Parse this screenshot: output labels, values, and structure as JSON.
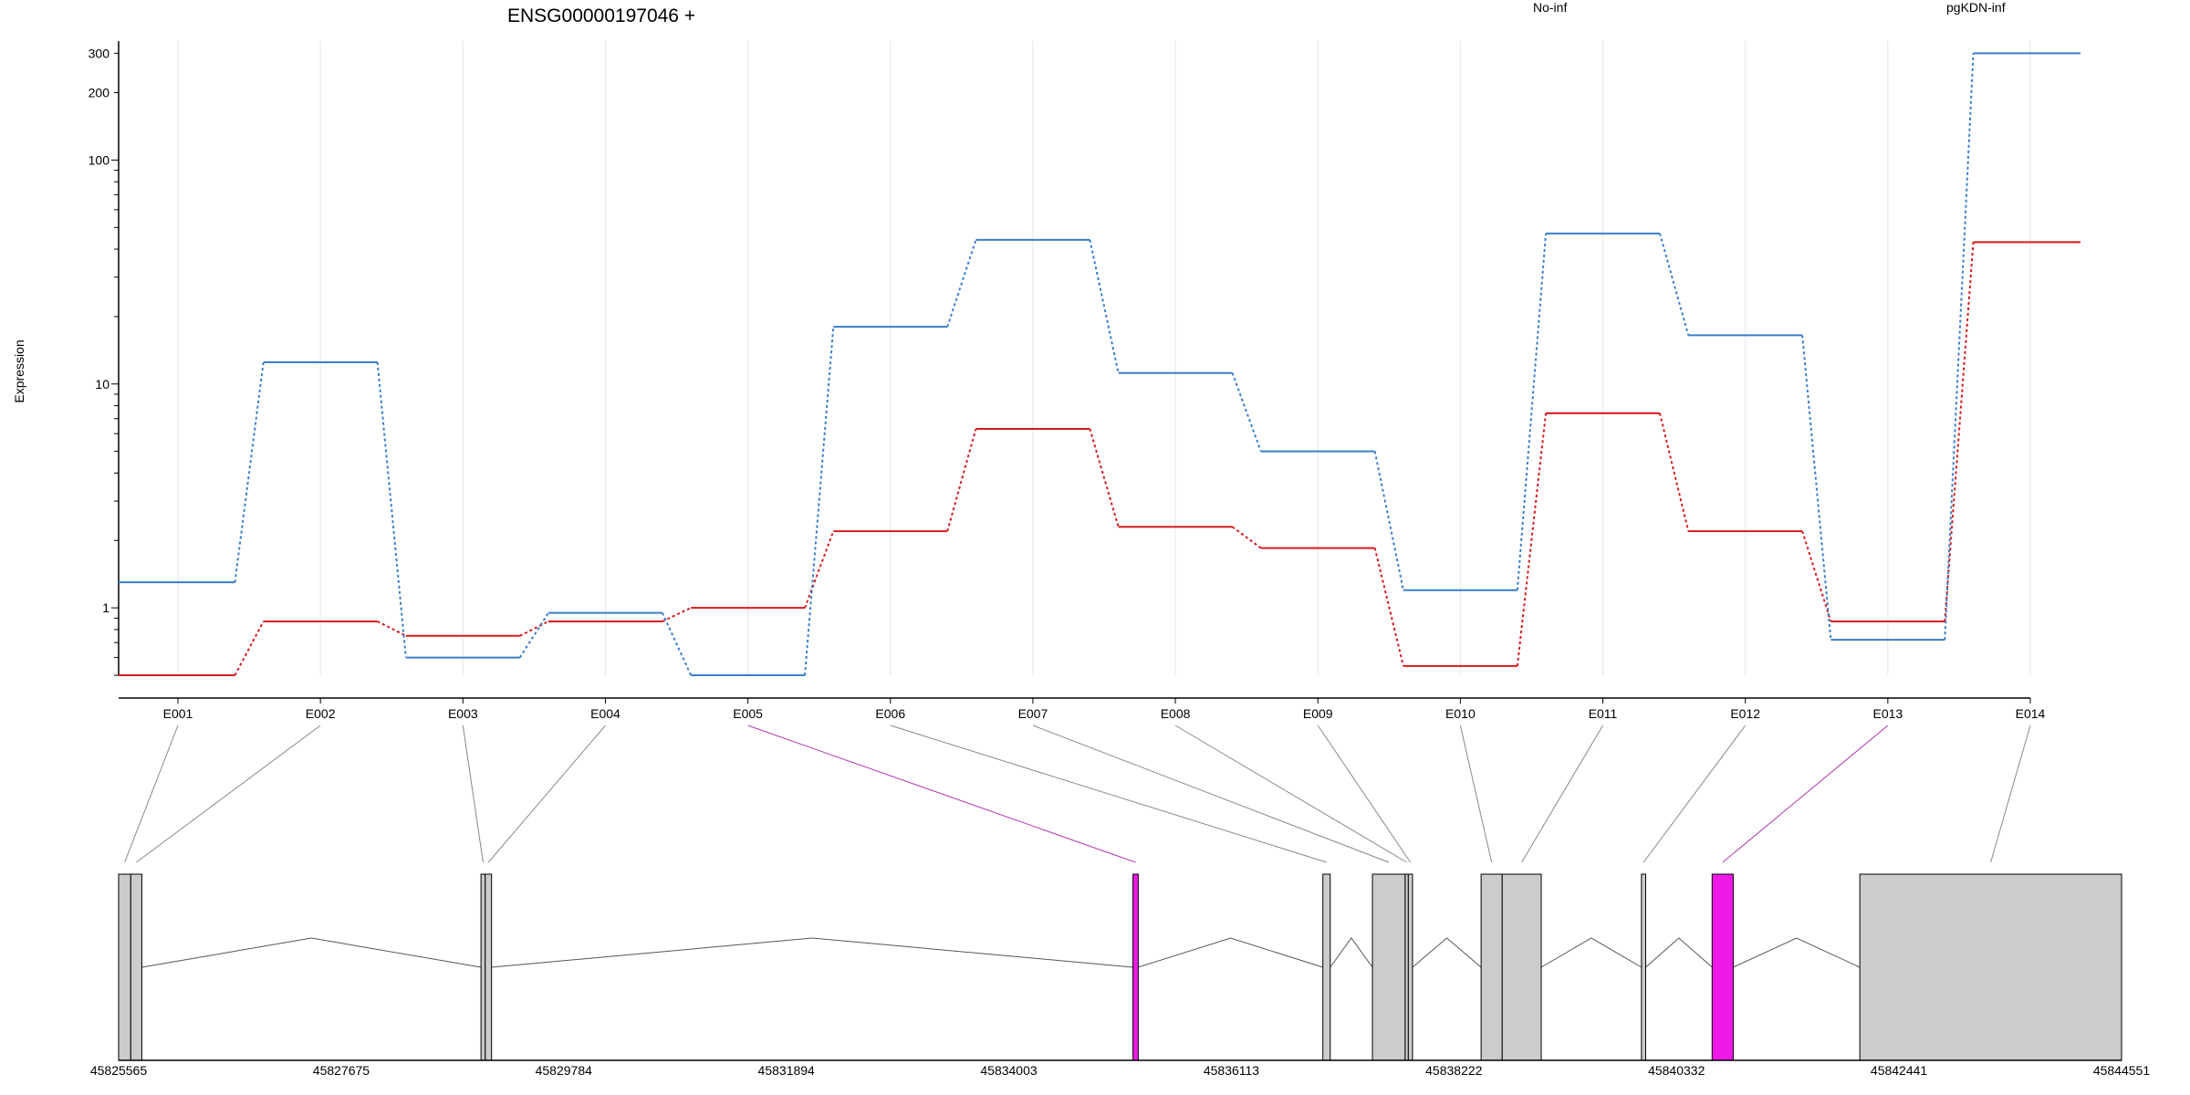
{
  "chart_data": {
    "type": "line",
    "title": "ENSG00000197046 +",
    "ylabel": "Expression",
    "yscale": "log",
    "ylim": [
      0.5,
      340
    ],
    "yticks": [
      {
        "value": 1,
        "label": "1"
      },
      {
        "value": 10,
        "label": "10"
      },
      {
        "value": 100,
        "label": "100"
      },
      {
        "value": 200,
        "label": "200"
      },
      {
        "value": 300,
        "label": "300"
      }
    ],
    "categories": [
      "E001",
      "E002",
      "E003",
      "E004",
      "E005",
      "E006",
      "E007",
      "E008",
      "E009",
      "E010",
      "E011",
      "E012",
      "E013",
      "E014"
    ],
    "series": [
      {
        "name": "No-inf",
        "color": "#d7191c",
        "values": [
          0.5,
          0.87,
          0.75,
          0.87,
          1.0,
          2.2,
          6.3,
          2.3,
          1.85,
          0.55,
          7.4,
          2.2,
          0.87,
          43
        ]
      },
      {
        "name": "pgKDN-inf",
        "color": "#3a7dc9",
        "values": [
          1.3,
          12.5,
          0.6,
          0.95,
          0.5,
          18,
          44,
          11.2,
          5.0,
          1.2,
          47,
          16.5,
          0.72,
          300
        ]
      }
    ],
    "grid": true,
    "legend_position": "top",
    "genomic_axis": {
      "start": 45825565,
      "end": 45844551,
      "ticks": [
        "45825565",
        "45827675",
        "45829784",
        "45831894",
        "45834003",
        "45836113",
        "45838222",
        "45840332",
        "45842441",
        "45844551"
      ]
    },
    "exons": [
      {
        "id": "E001",
        "start": 45825565,
        "end": 45825680,
        "highlight": false
      },
      {
        "id": "E002",
        "start": 45825680,
        "end": 45825785,
        "highlight": false
      },
      {
        "id": "E003",
        "start": 45829000,
        "end": 45829040,
        "highlight": false
      },
      {
        "id": "E004",
        "start": 45829040,
        "end": 45829100,
        "highlight": false
      },
      {
        "id": "E005",
        "start": 45835180,
        "end": 45835230,
        "highlight": true
      },
      {
        "id": "E006",
        "start": 45836980,
        "end": 45837050,
        "highlight": false
      },
      {
        "id": "E007",
        "start": 45837450,
        "end": 45837760,
        "highlight": false
      },
      {
        "id": "E008",
        "start": 45837760,
        "end": 45837790,
        "highlight": false
      },
      {
        "id": "E009",
        "start": 45837790,
        "end": 45837830,
        "highlight": false
      },
      {
        "id": "E010",
        "start": 45838480,
        "end": 45838680,
        "highlight": false
      },
      {
        "id": "E011",
        "start": 45838680,
        "end": 45839050,
        "highlight": false
      },
      {
        "id": "E012",
        "start": 45840000,
        "end": 45840040,
        "highlight": false
      },
      {
        "id": "E013",
        "start": 45840670,
        "end": 45840870,
        "highlight": true
      },
      {
        "id": "E014",
        "start": 45842070,
        "end": 45844551,
        "highlight": false
      }
    ],
    "colors": {
      "exon_fill": "#cccccc",
      "exon_highlight": "#ee1ae6",
      "grid": "#e6e6e6"
    }
  }
}
